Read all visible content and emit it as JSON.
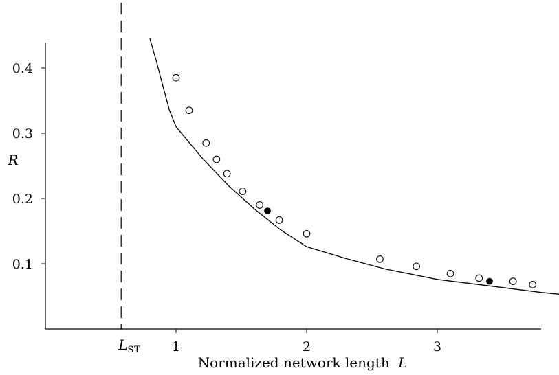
{
  "chart_data": {
    "type": "scatter",
    "xlabel": "Normalized network length L",
    "xlabel_text": "Normalized network length",
    "xlabel_var": "L",
    "ylabel": "R",
    "xlim": [
      -0.0,
      3.8
    ],
    "ylim": [
      0.0,
      0.44
    ],
    "x_ticks": [
      {
        "value": 1,
        "label": "1"
      },
      {
        "value": 2,
        "label": "2"
      },
      {
        "value": 3,
        "label": "3"
      }
    ],
    "y_ticks": [
      {
        "value": 0.1,
        "label": "0.1"
      },
      {
        "value": 0.2,
        "label": "0.2"
      },
      {
        "value": 0.3,
        "label": "0.3"
      },
      {
        "value": 0.4,
        "label": "0.4"
      }
    ],
    "reference_line": {
      "x": 0.58,
      "style": "dashed",
      "label_main": "L",
      "label_sub": "ST"
    },
    "series": [
      {
        "kind": "points",
        "marker": "open-circle",
        "points": [
          [
            1.0,
            0.385
          ],
          [
            1.1,
            0.335
          ],
          [
            1.23,
            0.285
          ],
          [
            1.31,
            0.26
          ],
          [
            1.39,
            0.238
          ],
          [
            1.51,
            0.211
          ],
          [
            1.64,
            0.19
          ],
          [
            1.79,
            0.167
          ],
          [
            2.0,
            0.146
          ],
          [
            2.56,
            0.107
          ],
          [
            2.84,
            0.096
          ],
          [
            3.1,
            0.085
          ],
          [
            3.32,
            0.078
          ],
          [
            3.58,
            0.073
          ],
          [
            3.73,
            0.068
          ]
        ]
      },
      {
        "kind": "points",
        "marker": "filled-circle",
        "points": [
          [
            1.7,
            0.181
          ],
          [
            3.4,
            0.073
          ]
        ]
      },
      {
        "kind": "curve",
        "style": "solid",
        "points": [
          [
            0.8,
            0.445
          ],
          [
            0.85,
            0.41
          ],
          [
            0.9,
            0.372
          ],
          [
            0.95,
            0.335
          ],
          [
            1.0,
            0.31
          ],
          [
            1.2,
            0.262
          ],
          [
            1.4,
            0.22
          ],
          [
            1.6,
            0.184
          ],
          [
            1.8,
            0.152
          ],
          [
            2.0,
            0.126
          ],
          [
            2.3,
            0.108
          ],
          [
            2.6,
            0.092
          ],
          [
            3.0,
            0.076
          ],
          [
            3.4,
            0.066
          ],
          [
            3.8,
            0.056
          ],
          [
            4.0,
            0.052
          ]
        ]
      }
    ]
  }
}
